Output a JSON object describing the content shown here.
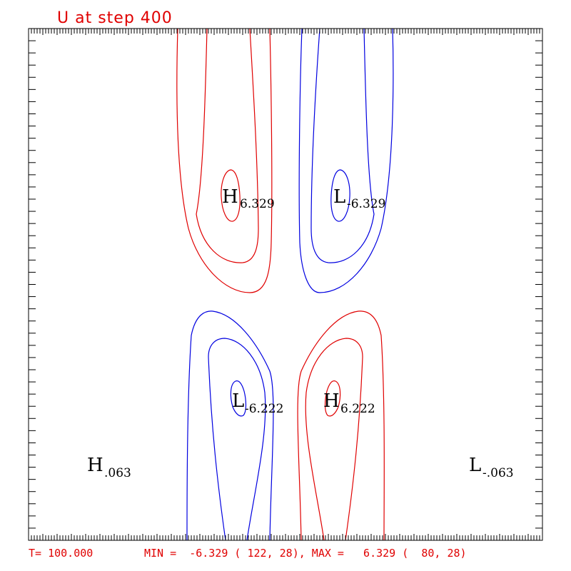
{
  "chart_data": {
    "type": "contour",
    "title": "U at step  400",
    "footer": {
      "time": "T= 100.000",
      "min_max": "MIN =  -6.329 ( 122, 28), MAX =   6.329 (  80, 28)"
    },
    "colors": {
      "positive": "#e00000",
      "negative": "#0000e0",
      "text": "#e00000",
      "frame": "#000000"
    },
    "extrema": [
      {
        "type": "H",
        "value": "6.329"
      },
      {
        "type": "L",
        "value": "-6.329"
      },
      {
        "type": "L",
        "value": "-6.222"
      },
      {
        "type": "H",
        "value": "6.222"
      },
      {
        "type": "H",
        "value": ".063"
      },
      {
        "type": "L",
        "value": "-.063"
      }
    ],
    "grid": false,
    "frame_ticks": true
  }
}
